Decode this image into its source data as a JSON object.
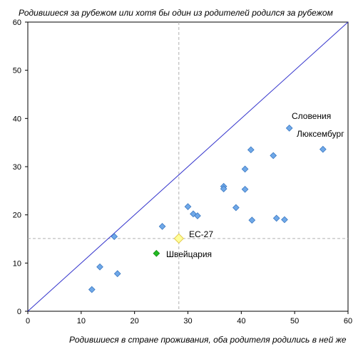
{
  "chart_data": {
    "type": "scatter",
    "title": "",
    "ylabel": "Родившиеся за рубежом или хотя бы один из родителей родился за рубежом",
    "xlabel": "Родившиеся в стране проживания, оба родителя родились в ней же",
    "xlim": [
      0,
      60
    ],
    "ylim": [
      0,
      60
    ],
    "x_ticks": [
      "0",
      "10",
      "20",
      "30",
      "40",
      "50",
      "60"
    ],
    "y_ticks": [
      "0",
      "10",
      "20",
      "30",
      "40",
      "50",
      "60"
    ],
    "grid": false,
    "colors": {
      "countries": "#6fa8e8",
      "countries_edge": "#3a78c2",
      "switzerland": "#22bb22",
      "eu27": "#ffff99",
      "eu27_edge": "#e3c84a",
      "diagonal": "#3333cc",
      "reference": "#b0b0b0"
    },
    "reference_lines": {
      "x": 28.3,
      "y": 15.1
    },
    "diagonal": [
      [
        0,
        0
      ],
      [
        60,
        60
      ]
    ],
    "series": [
      {
        "points": [
          {
            "x": 12.0,
            "y": 4.5
          },
          {
            "x": 13.5,
            "y": 9.2
          },
          {
            "x": 16.8,
            "y": 7.8
          },
          {
            "x": 16.2,
            "y": 15.5
          },
          {
            "x": 25.2,
            "y": 17.6
          },
          {
            "x": 30.0,
            "y": 21.7
          },
          {
            "x": 31.0,
            "y": 20.2
          },
          {
            "x": 31.8,
            "y": 19.8
          },
          {
            "x": 36.7,
            "y": 25.9
          },
          {
            "x": 36.7,
            "y": 25.4
          },
          {
            "x": 39.0,
            "y": 21.5
          },
          {
            "x": 40.7,
            "y": 29.5
          },
          {
            "x": 40.7,
            "y": 25.3
          },
          {
            "x": 41.8,
            "y": 33.5
          },
          {
            "x": 42.0,
            "y": 18.9
          },
          {
            "x": 46.0,
            "y": 32.3
          },
          {
            "x": 46.6,
            "y": 19.3
          },
          {
            "x": 48.1,
            "y": 19.0
          },
          {
            "x": 49.0,
            "y": 38.0
          },
          {
            "x": 55.3,
            "y": 33.6
          }
        ]
      },
      {
        "label": "Швейцария",
        "points": [
          {
            "x": 24.1,
            "y": 12.0
          }
        ]
      },
      {
        "label": "ЕС-27",
        "points": [
          {
            "x": 28.3,
            "y": 15.1
          }
        ]
      }
    ],
    "annotations": [
      "Словения",
      "Люксембург"
    ]
  }
}
